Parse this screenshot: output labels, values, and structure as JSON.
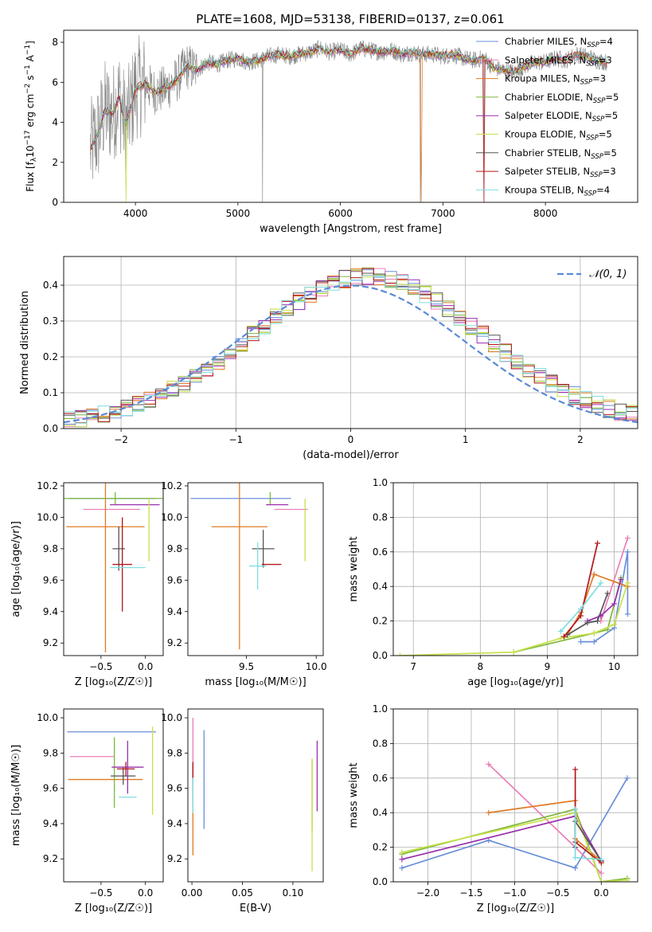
{
  "figure_title": "PLATE=1608, MJD=53138, FIBERID=0137, z=0.061",
  "models": [
    {
      "name": "Chabrier MILES",
      "n": "4",
      "color": "#6a8fd8"
    },
    {
      "name": "Salpeter MILES",
      "n": "3",
      "color": "#e97fb7"
    },
    {
      "name": "Kroupa MILES",
      "n": "3",
      "color": "#e07b24"
    },
    {
      "name": "Chabrier ELODIE",
      "n": "5",
      "color": "#7cb83b"
    },
    {
      "name": "Salpeter ELODIE",
      "n": "5",
      "color": "#9b2fae"
    },
    {
      "name": "Kroupa ELODIE",
      "n": "5",
      "color": "#c7e04a"
    },
    {
      "name": "Chabrier STELIB",
      "n": "5",
      "color": "#555555"
    },
    {
      "name": "Salpeter STELIB",
      "n": "3",
      "color": "#b2181b"
    },
    {
      "name": "Kroupa STELIB",
      "n": "4",
      "color": "#7fdde0"
    }
  ],
  "legend_n_label": "N",
  "legend_n_sub": "SSP",
  "chart_data": [
    {
      "id": "spectrum",
      "type": "line",
      "title": "PLATE=1608, MJD=53138, FIBERID=0137, z=0.061",
      "xlabel": "wavelength [Angstrom, rest frame]",
      "ylabel": "Flux [f",
      "xlim": [
        3300,
        8900
      ],
      "ylim": [
        0,
        8.6
      ],
      "xticks": [
        4000,
        5000,
        6000,
        7000,
        8000
      ],
      "yticks": [
        0,
        2,
        4,
        6,
        8
      ],
      "grid": false,
      "legend": "top-right",
      "continuum": [
        [
          3560,
          2.6
        ],
        [
          3640,
          3.5
        ],
        [
          3700,
          4.6
        ],
        [
          3780,
          4.4
        ],
        [
          3840,
          5.3
        ],
        [
          3900,
          3.9
        ],
        [
          3950,
          4.6
        ],
        [
          4000,
          5.7
        ],
        [
          4100,
          5.9
        ],
        [
          4200,
          5.5
        ],
        [
          4300,
          5.7
        ],
        [
          4400,
          6.1
        ],
        [
          4500,
          6.8
        ],
        [
          4600,
          6.6
        ],
        [
          4700,
          7.0
        ],
        [
          4800,
          6.9
        ],
        [
          4900,
          7.1
        ],
        [
          5000,
          7.2
        ],
        [
          5100,
          7.0
        ],
        [
          5200,
          7.1
        ],
        [
          5300,
          7.3
        ],
        [
          5400,
          7.4
        ],
        [
          5500,
          7.3
        ],
        [
          5600,
          7.4
        ],
        [
          5700,
          7.5
        ],
        [
          5800,
          7.7
        ],
        [
          5900,
          7.5
        ],
        [
          6000,
          7.6
        ],
        [
          6100,
          7.4
        ],
        [
          6200,
          7.7
        ],
        [
          6300,
          7.6
        ],
        [
          6400,
          7.5
        ],
        [
          6500,
          7.6
        ],
        [
          6600,
          7.4
        ],
        [
          6700,
          7.5
        ],
        [
          6800,
          7.4
        ],
        [
          6900,
          7.4
        ],
        [
          7000,
          7.3
        ],
        [
          7100,
          7.4
        ],
        [
          7200,
          7.2
        ],
        [
          7300,
          7.1
        ],
        [
          7400,
          7.2
        ],
        [
          7500,
          6.7
        ],
        [
          7600,
          6.6
        ],
        [
          7700,
          6.5
        ],
        [
          7800,
          6.8
        ],
        [
          7900,
          7.0
        ],
        [
          8000,
          7.0
        ],
        [
          8100,
          7.2
        ],
        [
          8200,
          7.1
        ],
        [
          8300,
          7.4
        ],
        [
          8400,
          7.3
        ],
        [
          8500,
          7.1
        ],
        [
          8600,
          7.0
        ]
      ]
    },
    {
      "id": "residuals",
      "type": "step",
      "xlabel": "(data-model)/error",
      "ylabel": "Normed distribution",
      "xlim": [
        -2.5,
        2.5
      ],
      "ylim": [
        0,
        0.48
      ],
      "xticks": [
        -2,
        -1,
        0,
        1,
        2
      ],
      "yticks": [
        0.0,
        0.1,
        0.2,
        0.3,
        0.4
      ],
      "grid": true,
      "legend": "top-right",
      "reference_label": "𝒩(0, 1)",
      "bins": 50
    },
    {
      "id": "age_vs_Z",
      "type": "errorbar",
      "xlabel": "Z [log₁₀(Z/Z☉)]",
      "ylabel": "age  [log₁₀(age/yr)]",
      "xlim": [
        -0.92,
        0.2
      ],
      "ylim": [
        9.12,
        10.22
      ],
      "xticks": [
        -0.5,
        0.0
      ],
      "yticks": [
        9.2,
        9.4,
        9.6,
        9.8,
        10.0,
        10.2
      ],
      "points": [
        {
          "x": -0.38,
          "xerr": 0.48,
          "y": 10.12,
          "yerr": 0.0
        },
        {
          "x": -0.38,
          "xerr": 0.32,
          "y": 10.05,
          "yerr": 0.0
        },
        {
          "x": -0.45,
          "xerr": 0.44,
          "y": 9.94,
          "yerr": 0.8
        },
        {
          "x": -0.34,
          "xerr": 0.58,
          "y": 10.12,
          "yerr": 0.04
        },
        {
          "x": -0.12,
          "xerr": 0.28,
          "y": 10.08,
          "yerr": 0.0
        },
        {
          "x": 0.04,
          "xerr": 0.0,
          "y": 9.92,
          "yerr": 0.2
        },
        {
          "x": -0.3,
          "xerr": 0.07,
          "y": 9.8,
          "yerr": 0.14
        },
        {
          "x": -0.26,
          "xerr": 0.11,
          "y": 9.7,
          "yerr": 0.3
        },
        {
          "x": -0.2,
          "xerr": 0.2,
          "y": 9.68,
          "yerr": 0.0
        }
      ]
    },
    {
      "id": "age_vs_mass",
      "type": "errorbar",
      "xlabel": "mass [log₁₀(M/M☉)]",
      "ylabel": "",
      "xlim": [
        9.08,
        10.05
      ],
      "ylim": [
        9.12,
        10.22
      ],
      "xticks": [
        9.5,
        10.0
      ],
      "yticks": [
        9.2,
        9.4,
        9.6,
        9.8,
        10.0,
        10.2
      ],
      "points": [
        {
          "x": 9.46,
          "xerr": 0.36,
          "y": 10.12,
          "yerr": 0.0
        },
        {
          "x": 9.82,
          "xerr": 0.12,
          "y": 10.05,
          "yerr": 0.0
        },
        {
          "x": 9.45,
          "xerr": 0.2,
          "y": 9.94,
          "yerr": 0.78
        },
        {
          "x": 9.67,
          "xerr": 0.0,
          "y": 10.12,
          "yerr": 0.04
        },
        {
          "x": 9.72,
          "xerr": 0.08,
          "y": 10.08,
          "yerr": 0.0
        },
        {
          "x": 9.92,
          "xerr": 0.0,
          "y": 9.92,
          "yerr": 0.2
        },
        {
          "x": 9.62,
          "xerr": 0.08,
          "y": 9.8,
          "yerr": 0.12
        },
        {
          "x": 9.68,
          "xerr": 0.07,
          "y": 9.7,
          "yerr": 0.0
        },
        {
          "x": 9.58,
          "xerr": 0.06,
          "y": 9.69,
          "yerr": 0.15
        }
      ]
    },
    {
      "id": "massweight_vs_age",
      "type": "line",
      "xlabel": "age  [log₁₀(age/yr)]",
      "ylabel": "mass weight",
      "xlim": [
        6.7,
        10.35
      ],
      "ylim": [
        0,
        1
      ],
      "xticks": [
        7,
        8,
        9,
        10
      ],
      "yticks": [
        0.0,
        0.2,
        0.4,
        0.6,
        0.8,
        1.0
      ],
      "grid": true,
      "series": [
        {
          "x": [
            9.5,
            9.7,
            10.0,
            10.2,
            10.2
          ],
          "y": [
            0.08,
            0.08,
            0.16,
            0.6,
            0.24
          ]
        },
        {
          "x": [
            9.8,
            10.2
          ],
          "y": [
            0.2,
            0.68
          ]
        },
        {
          "x": [
            9.3,
            9.5,
            9.7,
            10.2
          ],
          "y": [
            0.12,
            0.25,
            0.47,
            0.4
          ]
        },
        {
          "x": [
            8.5,
            9.7,
            9.9,
            10.1
          ],
          "y": [
            0.02,
            0.13,
            0.15,
            0.45
          ]
        },
        {
          "x": [
            9.6,
            9.8,
            10.0,
            10.1
          ],
          "y": [
            0.2,
            0.23,
            0.3,
            0.44
          ]
        },
        {
          "x": [
            6.8,
            8.5,
            9.2,
            9.7,
            10.0,
            10.2
          ],
          "y": [
            0.0,
            0.02,
            0.1,
            0.13,
            0.18,
            0.42
          ]
        },
        {
          "x": [
            9.3,
            9.6,
            9.75,
            9.9
          ],
          "y": [
            0.12,
            0.19,
            0.2,
            0.36
          ]
        },
        {
          "x": [
            9.25,
            9.5,
            9.75
          ],
          "y": [
            0.11,
            0.23,
            0.65
          ]
        },
        {
          "x": [
            9.2,
            9.5,
            9.8
          ],
          "y": [
            0.14,
            0.27,
            0.42
          ]
        }
      ]
    },
    {
      "id": "mass_vs_Z",
      "type": "errorbar",
      "xlabel": "Z [log₁₀(Z/Z☉)]",
      "ylabel": "mass [log₁₀(M/M☉)]",
      "xlim": [
        -0.92,
        0.2
      ],
      "ylim": [
        9.07,
        10.05
      ],
      "xticks": [
        -0.5,
        0.0
      ],
      "yticks": [
        9.2,
        9.4,
        9.6,
        9.8,
        10.0
      ],
      "points": [
        {
          "x": -0.38,
          "xerr": 0.5,
          "y": 9.92,
          "yerr": 0.0
        },
        {
          "x": -0.6,
          "xerr": 0.25,
          "y": 9.78,
          "yerr": 0.0
        },
        {
          "x": -0.45,
          "xerr": 0.42,
          "y": 9.65,
          "yerr": 0.0
        },
        {
          "x": -0.35,
          "xerr": 0.0,
          "y": 9.69,
          "yerr": 0.2
        },
        {
          "x": -0.2,
          "xerr": 0.18,
          "y": 9.72,
          "yerr": 0.15
        },
        {
          "x": 0.08,
          "xerr": 0.0,
          "y": 9.7,
          "yerr": 0.25
        },
        {
          "x": -0.25,
          "xerr": 0.14,
          "y": 9.67,
          "yerr": 0.05
        },
        {
          "x": -0.22,
          "xerr": 0.1,
          "y": 9.71,
          "yerr": 0.04
        },
        {
          "x": -0.2,
          "xerr": 0.1,
          "y": 9.55,
          "yerr": 0.0
        }
      ]
    },
    {
      "id": "mass_vs_EBV",
      "type": "errorbar",
      "xlabel": "E(B-V)",
      "ylabel": "",
      "xlim": [
        -0.004,
        0.13
      ],
      "ylim": [
        9.07,
        10.05
      ],
      "xticks": [
        0.0,
        0.05,
        0.1
      ],
      "yticks": [
        9.2,
        9.4,
        9.6,
        9.8,
        10.0
      ],
      "points": [
        {
          "x": 0.012,
          "xerr": 0.0,
          "y": 9.65,
          "yerr": 0.28
        },
        {
          "x": 0.001,
          "xerr": 0.0,
          "y": 9.75,
          "yerr": 0.25
        },
        {
          "x": 0.001,
          "xerr": 0.0,
          "y": 9.48,
          "yerr": 0.26
        },
        {
          "x": 0.119,
          "xerr": 0.0,
          "y": 9.56,
          "yerr": 0.2
        },
        {
          "x": 0.124,
          "xerr": 0.0,
          "y": 9.67,
          "yerr": 0.2
        },
        {
          "x": 0.119,
          "xerr": 0.0,
          "y": 9.45,
          "yerr": 0.32
        },
        {
          "x": 0.001,
          "xerr": 0.0,
          "y": 9.68,
          "yerr": 0.06
        },
        {
          "x": 0.001,
          "xerr": 0.0,
          "y": 9.7,
          "yerr": 0.05
        },
        {
          "x": 0.001,
          "xerr": 0.0,
          "y": 9.56,
          "yerr": 0.1
        }
      ]
    },
    {
      "id": "massweight_vs_Z",
      "type": "line",
      "xlabel": "Z [log₁₀(Z/Z☉)]",
      "ylabel": "mass weight",
      "xlim": [
        -2.4,
        0.42
      ],
      "ylim": [
        0,
        1
      ],
      "xticks": [
        -2.0,
        -1.5,
        -1.0,
        -0.5,
        0.0
      ],
      "yticks": [
        0.0,
        0.2,
        0.4,
        0.6,
        0.8,
        1.0
      ],
      "grid": true,
      "series": [
        {
          "x": [
            -2.3,
            -1.3,
            -0.3,
            0.3
          ],
          "y": [
            0.08,
            0.24,
            0.08,
            0.6
          ]
        },
        {
          "x": [
            -1.3,
            -0.3,
            0.0
          ],
          "y": [
            0.68,
            0.2,
            0.05
          ]
        },
        {
          "x": [
            -1.3,
            -0.3,
            -0.3,
            0.0
          ],
          "y": [
            0.4,
            0.47,
            0.25,
            0.12
          ]
        },
        {
          "x": [
            -2.3,
            -0.3,
            0.0,
            0.3
          ],
          "y": [
            0.16,
            0.42,
            0.0,
            0.02
          ]
        },
        {
          "x": [
            -2.3,
            -0.3,
            0.0
          ],
          "y": [
            0.13,
            0.38,
            0.12
          ]
        },
        {
          "x": [
            -2.3,
            -0.3,
            0.0,
            0.3
          ],
          "y": [
            0.17,
            0.4,
            0.0,
            0.01
          ]
        },
        {
          "x": [
            -0.3,
            -0.3,
            0.0
          ],
          "y": [
            0.2,
            0.35,
            0.12
          ]
        },
        {
          "x": [
            -0.3,
            -0.3,
            0.0
          ],
          "y": [
            0.65,
            0.23,
            0.11
          ]
        },
        {
          "x": [
            -0.3,
            -0.3,
            0.0
          ],
          "y": [
            0.42,
            0.14,
            0.13
          ]
        }
      ]
    }
  ]
}
